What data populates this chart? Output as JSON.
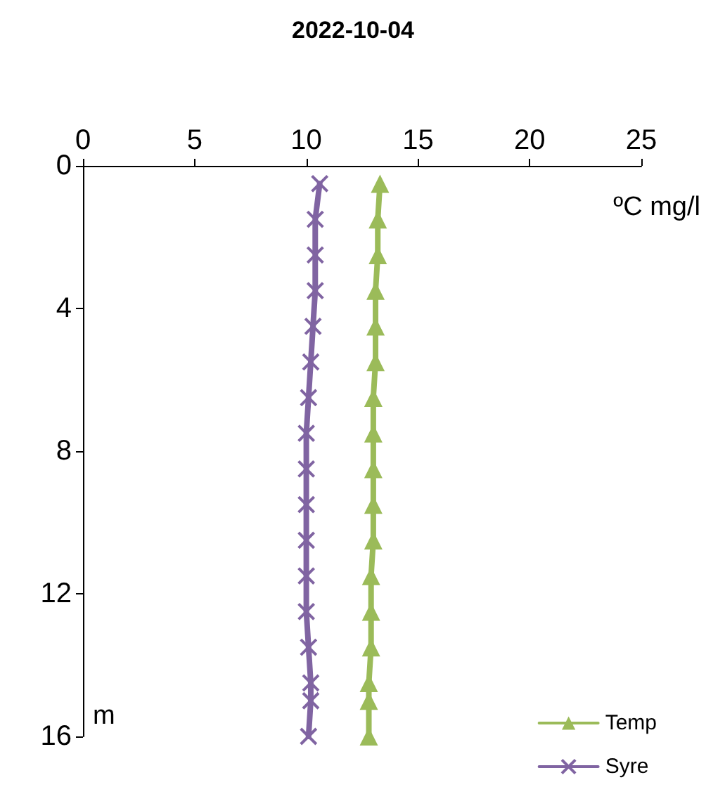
{
  "chart_data": {
    "type": "line",
    "title": "2022-10-04",
    "orientation": "horizontal",
    "xlabel": "ºC mg/l",
    "ylabel": "m",
    "x": [
      0.5,
      1.5,
      2.5,
      3.5,
      4.5,
      5.5,
      6.5,
      7.5,
      8.5,
      9.5,
      10.5,
      11.5,
      12.5,
      13.5,
      14.5,
      15,
      16
    ],
    "series": [
      {
        "name": "Temp",
        "color": "#9bbb59",
        "marker": "triangle",
        "values": [
          13.3,
          13.2,
          13.2,
          13.1,
          13.1,
          13.1,
          13.0,
          13.0,
          13.0,
          13.0,
          13.0,
          12.9,
          12.9,
          12.9,
          12.8,
          12.8,
          12.8
        ]
      },
      {
        "name": "Syre",
        "color": "#8064a2",
        "marker": "cross",
        "values": [
          10.6,
          10.4,
          10.4,
          10.4,
          10.3,
          10.2,
          10.1,
          10.0,
          10.0,
          10.0,
          10.0,
          10.0,
          10.0,
          10.1,
          10.2,
          10.2,
          10.1
        ]
      }
    ],
    "xlim": [
      0,
      25
    ],
    "xticks": [
      0,
      5,
      10,
      15,
      20,
      25
    ],
    "ylim": [
      16,
      0
    ],
    "yticks": [
      0,
      4,
      8,
      12,
      16
    ],
    "grid": false,
    "legend": "bottom right",
    "line_style": "solid"
  }
}
